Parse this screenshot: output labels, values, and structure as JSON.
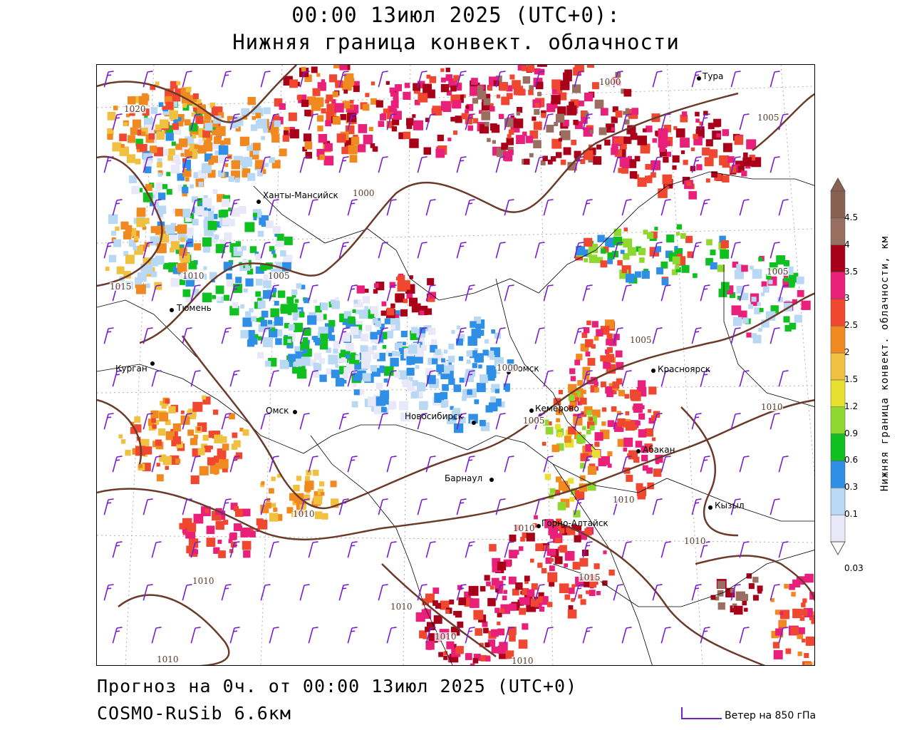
{
  "header": {
    "title": "00:00 13июл 2025 (UTC+0):",
    "subtitle": "Нижняя граница конвект. облачности"
  },
  "footer": {
    "forecast": "Прогноз на 0ч. от 00:00 13июл 2025 (UTC+0)",
    "model": "COSMO-RuSib 6.6км",
    "wind_legend": "Ветер на 850 гПа"
  },
  "scale": {
    "title": "Нижняя граница конвект. облачности, км",
    "levels": [
      {
        "label": "0.03",
        "color": "#e8e8f8"
      },
      {
        "label": "0.1",
        "color": "#b8d8f4"
      },
      {
        "label": "0.3",
        "color": "#2f8ee6"
      },
      {
        "label": "0.6",
        "color": "#10c020"
      },
      {
        "label": "0.9",
        "color": "#8ed830"
      },
      {
        "label": "1.2",
        "color": "#e8e030"
      },
      {
        "label": "1.5",
        "color": "#f0c040"
      },
      {
        "label": "2",
        "color": "#f08a20"
      },
      {
        "label": "2.5",
        "color": "#f04830"
      },
      {
        "label": "3",
        "color": "#e8207a"
      },
      {
        "label": "3.5",
        "color": "#a80018"
      },
      {
        "label": "4",
        "color": "#9a6e60"
      },
      {
        "label": "4.5",
        "color": "#8a6050"
      }
    ]
  },
  "cities": [
    {
      "name": "Тура"
    },
    {
      "name": "Ханты-Мансийск"
    },
    {
      "name": "Тюмень"
    },
    {
      "name": "Курган"
    },
    {
      "name": "Омск"
    },
    {
      "name": "Новосибирск"
    },
    {
      "name": "Томск"
    },
    {
      "name": "Кемерово"
    },
    {
      "name": "Красноярск"
    },
    {
      "name": "Абакан"
    },
    {
      "name": "Барнаул"
    },
    {
      "name": "Горно-Алтайск"
    },
    {
      "name": "Кызыл"
    }
  ],
  "isobar_labels": [
    "1000",
    "1005",
    "1010",
    "1015",
    "1020"
  ],
  "colors": {
    "isobar": "#6b3a2a",
    "border": "#000000",
    "wind": "#7a1fd0",
    "grid": "#b0b0b0"
  }
}
